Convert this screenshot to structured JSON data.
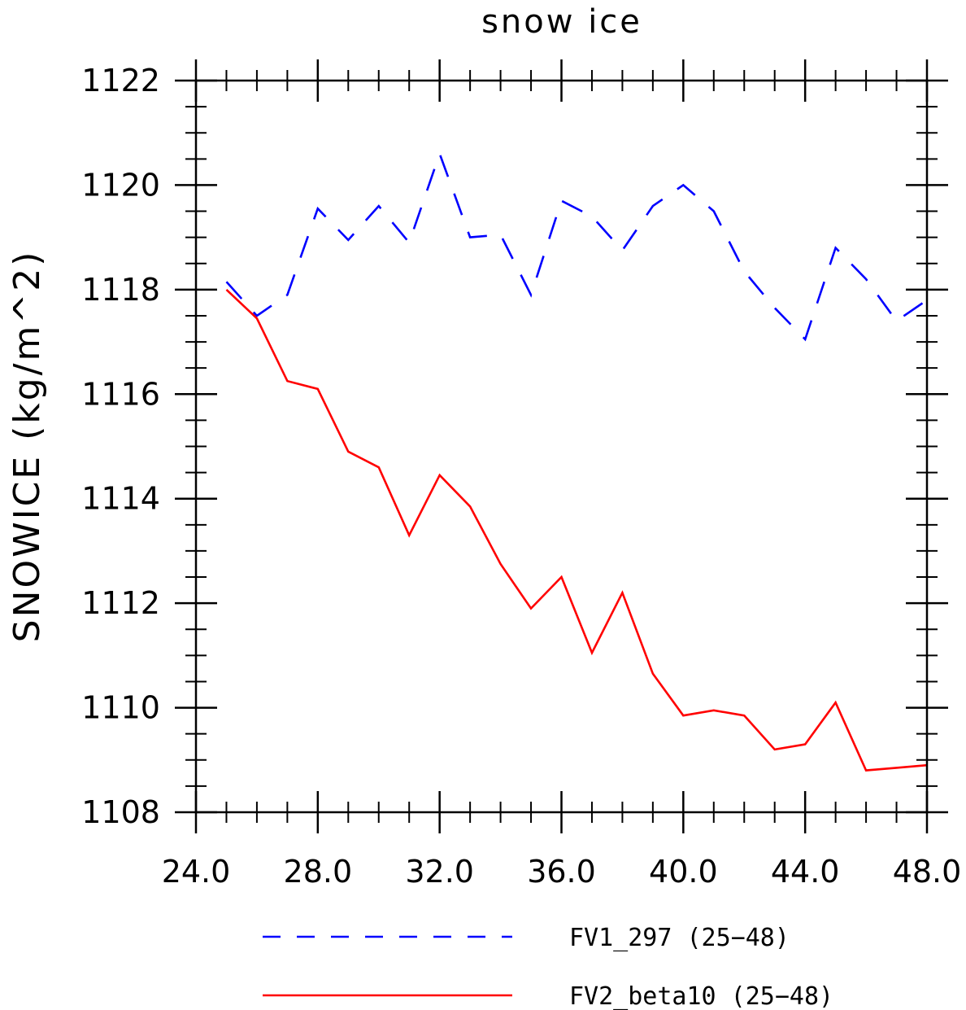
{
  "chart_data": {
    "type": "line",
    "title": "snow ice",
    "xlabel": "",
    "ylabel": "SNOWICE   (kg/m^2)",
    "xlim": [
      24.0,
      48.0
    ],
    "ylim": [
      1108,
      1122
    ],
    "x_ticks": [
      "24.0",
      "28.0",
      "32.0",
      "36.0",
      "40.0",
      "44.0",
      "48.0"
    ],
    "y_ticks": [
      "1108",
      "1110",
      "1112",
      "1114",
      "1116",
      "1118",
      "1120",
      "1122"
    ],
    "x": [
      25,
      26,
      27,
      28,
      29,
      30,
      31,
      32,
      33,
      34,
      35,
      36,
      37,
      38,
      39,
      40,
      41,
      42,
      43,
      44,
      45,
      46,
      47,
      48
    ],
    "series": [
      {
        "name": "FV1_297 (25−48)",
        "color": "#0000ff",
        "dash": "dashed",
        "values": [
          1118.15,
          1117.5,
          1117.9,
          1119.55,
          1118.95,
          1119.6,
          1118.9,
          1120.6,
          1119.0,
          1119.05,
          1117.9,
          1119.7,
          1119.4,
          1118.75,
          1119.6,
          1120.0,
          1119.5,
          1118.35,
          1117.65,
          1117.05,
          1118.8,
          1118.2,
          1117.4,
          1117.8
        ]
      },
      {
        "name": "FV2_beta10 (25−48)",
        "color": "#ff0000",
        "dash": "solid",
        "values": [
          1118.0,
          1117.45,
          1116.25,
          1116.1,
          1114.9,
          1114.6,
          1113.3,
          1114.45,
          1113.85,
          1112.75,
          1111.9,
          1112.5,
          1111.05,
          1112.2,
          1110.65,
          1109.85,
          1109.95,
          1109.85,
          1109.2,
          1109.3,
          1110.1,
          1108.8,
          1108.85,
          1108.9
        ]
      }
    ],
    "grid": false,
    "legend_position": "bottom"
  }
}
